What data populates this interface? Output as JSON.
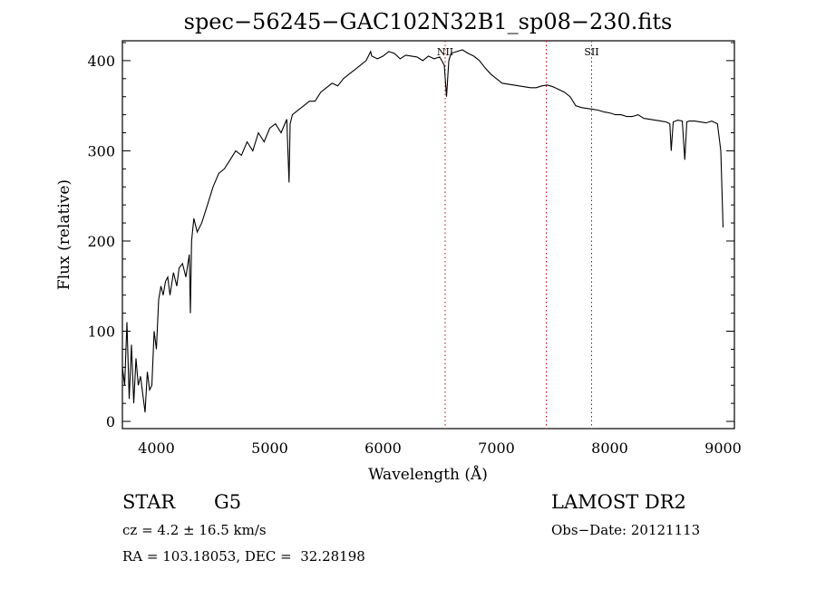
{
  "chart_data": {
    "type": "line",
    "title": "spec−56245−GAC102N32B1_sp08−230.fits",
    "xlabel": "Wavelength (Å)",
    "ylabel": "Flux (relative)",
    "xlim": [
      3700,
      9100
    ],
    "ylim": [
      -8,
      422
    ],
    "xticks": [
      4000,
      5000,
      6000,
      7000,
      8000,
      9000
    ],
    "yticks": [
      0,
      100,
      200,
      300,
      400
    ],
    "series": [
      {
        "x": [
          3700,
          3720,
          3740,
          3760,
          3780,
          3800,
          3820,
          3840,
          3860,
          3880,
          3900,
          3920,
          3940,
          3960,
          3980,
          4000,
          4020,
          4040,
          4060,
          4080,
          4100,
          4120,
          4150,
          4180,
          4200,
          4230,
          4260,
          4290,
          4300,
          4310,
          4330,
          4360,
          4400,
          4450,
          4500,
          4550,
          4600,
          4650,
          4700,
          4750,
          4800,
          4850,
          4900,
          4950,
          5000,
          5050,
          5100,
          5150,
          5170,
          5180,
          5200,
          5250,
          5300,
          5350,
          5400,
          5450,
          5500,
          5550,
          5600,
          5650,
          5700,
          5750,
          5800,
          5850,
          5890,
          5900,
          5950,
          6000,
          6050,
          6100,
          6150,
          6200,
          6250,
          6300,
          6350,
          6400,
          6450,
          6500,
          6540,
          6560,
          6580,
          6600,
          6650,
          6700,
          6750,
          6800,
          6850,
          6900,
          6950,
          7000,
          7050,
          7100,
          7150,
          7200,
          7250,
          7300,
          7350,
          7400,
          7450,
          7500,
          7550,
          7600,
          7650,
          7700,
          7750,
          7800,
          7850,
          7900,
          7950,
          8000,
          8050,
          8100,
          8150,
          8200,
          8250,
          8300,
          8350,
          8400,
          8450,
          8500,
          8530,
          8542,
          8560,
          8580,
          8600,
          8640,
          8662,
          8680,
          8700,
          8750,
          8800,
          8850,
          8900,
          8950,
          8980,
          9000
        ],
        "values": [
          60,
          40,
          110,
          25,
          85,
          20,
          70,
          40,
          50,
          30,
          10,
          55,
          35,
          40,
          100,
          80,
          135,
          150,
          140,
          155,
          160,
          140,
          165,
          150,
          170,
          175,
          160,
          185,
          120,
          200,
          225,
          210,
          220,
          240,
          260,
          275,
          280,
          290,
          300,
          295,
          310,
          300,
          320,
          310,
          325,
          330,
          320,
          335,
          265,
          330,
          340,
          345,
          350,
          355,
          355,
          365,
          370,
          375,
          372,
          380,
          385,
          390,
          395,
          400,
          410,
          405,
          402,
          405,
          410,
          408,
          402,
          406,
          405,
          404,
          400,
          405,
          402,
          404,
          395,
          360,
          400,
          408,
          410,
          412,
          408,
          405,
          400,
          392,
          385,
          380,
          375,
          374,
          373,
          372,
          371,
          370,
          370,
          372,
          373,
          371,
          368,
          365,
          360,
          350,
          348,
          347,
          346,
          345,
          343,
          342,
          340,
          340,
          338,
          338,
          340,
          336,
          335,
          334,
          333,
          332,
          330,
          300,
          332,
          333,
          334,
          333,
          290,
          332,
          333,
          333,
          332,
          331,
          333,
          330,
          300,
          215
        ]
      }
    ],
    "lines": [
      {
        "x": 6548,
        "label": "NII",
        "color": "#cc0000"
      },
      {
        "x": 7440,
        "label": "",
        "color": "#cc0000"
      },
      {
        "x": 7840,
        "label": "SII",
        "color": "#cc0000"
      }
    ]
  },
  "info": {
    "left_line1a": "STAR",
    "left_line1b": "G5",
    "left_line2": "cz = 4.2 ± 16.5 km/s",
    "left_line3": "RA = 103.18053, DEC =  32.28198",
    "right_line1": "LAMOST DR2",
    "right_line2": "Obs−Date: 20121113"
  }
}
